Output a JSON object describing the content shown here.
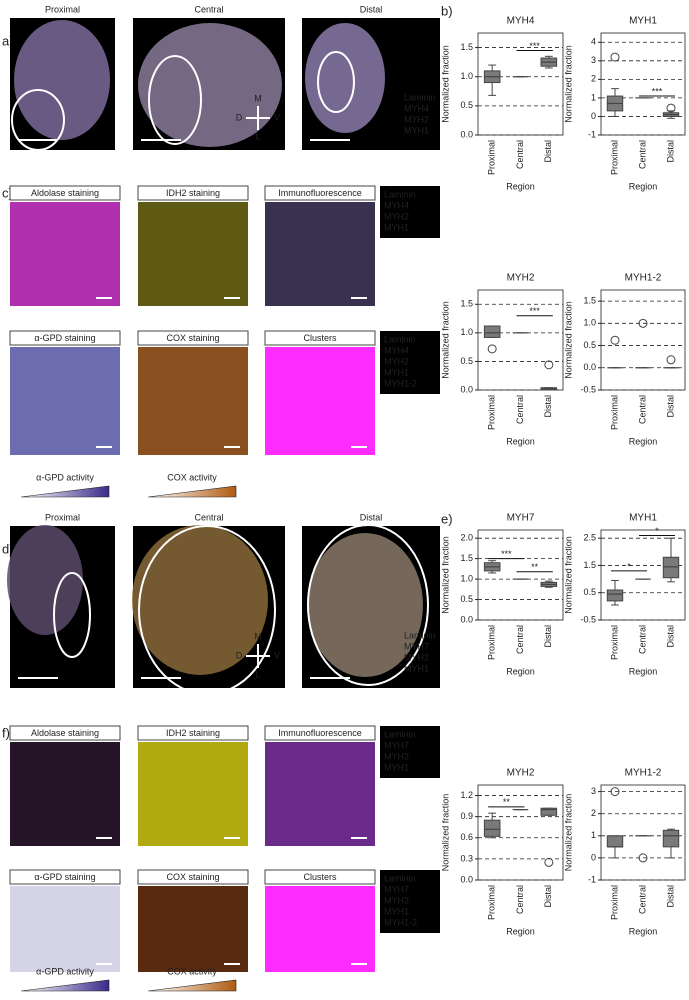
{
  "a": {
    "label": "a)",
    "images": [
      "Proximal",
      "Central",
      "Distal"
    ],
    "legend": [
      "Laminin",
      "MYH4",
      "MYH2",
      "MYH1"
    ],
    "compass": [
      "M",
      "D",
      "V",
      "L"
    ]
  },
  "b": {
    "label": "b)"
  },
  "c": {
    "label": "c)",
    "tiles": [
      "Aldolase staining",
      "IDH2 staining",
      "Immunofluorescence",
      "α-GPD staining",
      "COX staining",
      "Clusters"
    ],
    "legend1": [
      "Laminin",
      "MYH4",
      "MYH2",
      "MYH1"
    ],
    "legend2": [
      "Laminin",
      "MYH4",
      "MYH2",
      "MYH1",
      "MYH1-2"
    ],
    "activities": [
      "α-GPD activity",
      "COX activity"
    ]
  },
  "d": {
    "label": "d)",
    "images": [
      "Proximal",
      "Central",
      "Distal"
    ],
    "legend": [
      "Laminin",
      "MYH7",
      "MYH2",
      "MYH1"
    ],
    "compass": [
      "M",
      "D",
      "V",
      "L"
    ]
  },
  "e": {
    "label": "e)"
  },
  "f": {
    "label": "f)",
    "tiles": [
      "Aldolase staining",
      "IDH2 staining",
      "Immunofluorescence",
      "α-GPD staining",
      "COX staining",
      "Clusters"
    ],
    "legend1": [
      "Laminin",
      "MYH7",
      "MYH2",
      "MYH1"
    ],
    "legend2": [
      "Laminin",
      "MYH7",
      "MYH2",
      "MYH1",
      "MYH1-2"
    ],
    "activities": [
      "α-GPD activity",
      "COX activity"
    ]
  },
  "chart_data": [
    {
      "type": "box",
      "title": "MYH4",
      "ylabel": "Normalized fraction",
      "xlabel": "Region",
      "categories": [
        "Proximal",
        "Central",
        "Distal"
      ],
      "boxes": [
        {
          "whislo": 0.68,
          "q1": 0.9,
          "med": 1.0,
          "q3": 1.1,
          "whishi": 1.2,
          "fliers": []
        },
        {
          "whislo": 1,
          "q1": 1,
          "med": 1,
          "q3": 1,
          "whishi": 1,
          "fliers": []
        },
        {
          "whislo": 1.15,
          "q1": 1.18,
          "med": 1.25,
          "q3": 1.32,
          "whishi": 1.35,
          "fliers": []
        }
      ],
      "ylim": [
        0,
        1.75
      ],
      "yticks": [
        {
          "value": 0,
          "label": "0.0"
        },
        0.5,
        {
          "value": 1,
          "label": "1.0"
        },
        1.5
      ],
      "grid": "dashed",
      "significance": [
        {
          "pair": [
            "Central",
            "Distal"
          ],
          "y": 1.45,
          "label": "***"
        }
      ]
    },
    {
      "type": "box",
      "title": "MYH1",
      "ylabel": "Normalized fraction",
      "xlabel": "Region",
      "categories": [
        "Proximal",
        "Central",
        "Distal"
      ],
      "boxes": [
        {
          "whislo": 0,
          "q1": 0.3,
          "med": 0.7,
          "q3": 1.1,
          "whishi": 1.5,
          "fliers": [
            3.2
          ]
        },
        {
          "whislo": 1,
          "q1": 1,
          "med": 1,
          "q3": 1,
          "whishi": 1,
          "fliers": []
        },
        {
          "whislo": -0.1,
          "q1": 0,
          "med": 0.1,
          "q3": 0.2,
          "whishi": 0.3,
          "fliers": [
            0.45
          ]
        }
      ],
      "ylim": [
        -1,
        4.5
      ],
      "yticks": [
        -1,
        0,
        1,
        2,
        3,
        4
      ],
      "grid": "dashed",
      "significance": [
        {
          "pair": [
            "Central",
            "Distal"
          ],
          "y": 1.1,
          "label": "***"
        }
      ]
    },
    {
      "type": "box",
      "title": "MYH2",
      "ylabel": "Normalized fraction",
      "xlabel": "Region",
      "categories": [
        "Proximal",
        "Central",
        "Distal"
      ],
      "boxes": [
        {
          "whislo": 0.92,
          "q1": 0.92,
          "med": 1.0,
          "q3": 1.12,
          "whishi": 1.12,
          "fliers": [
            0.72
          ]
        },
        {
          "whislo": 1,
          "q1": 1,
          "med": 1,
          "q3": 1,
          "whishi": 1,
          "fliers": []
        },
        {
          "whislo": 0,
          "q1": 0,
          "med": 0.02,
          "q3": 0.04,
          "whishi": 0.04,
          "fliers": [
            0.44
          ]
        }
      ],
      "ylim": [
        0,
        1.75
      ],
      "yticks": [
        {
          "value": 0,
          "label": "0.0"
        },
        0.5,
        {
          "value": 1,
          "label": "1.0"
        },
        1.5
      ],
      "grid": "dashed",
      "significance": [
        {
          "pair": [
            "Central",
            "Distal"
          ],
          "y": 1.3,
          "label": "***"
        }
      ]
    },
    {
      "type": "box",
      "title": "MYH1-2",
      "ylabel": "Normalized fraction",
      "xlabel": "Region",
      "categories": [
        "Proximal",
        "Central",
        "Distal"
      ],
      "boxes": [
        {
          "whislo": 0,
          "q1": 0,
          "med": 0,
          "q3": 0,
          "whishi": 0,
          "fliers": [
            0.62
          ]
        },
        {
          "whislo": 0,
          "q1": 0,
          "med": 0,
          "q3": 0,
          "whishi": 0,
          "fliers": [
            1.0
          ]
        },
        {
          "whislo": 0,
          "q1": 0,
          "med": 0,
          "q3": 0,
          "whishi": 0,
          "fliers": [
            0.18
          ]
        }
      ],
      "ylim": [
        -0.5,
        1.75
      ],
      "yticks": [
        -0.5,
        {
          "value": 0,
          "label": "0.0"
        },
        0.5,
        {
          "value": 1,
          "label": "1.0"
        },
        1.5
      ],
      "grid": "dashed",
      "significance": []
    },
    {
      "type": "box",
      "title": "MYH7",
      "ylabel": "Normalized fraction",
      "xlabel": "Region",
      "categories": [
        "Proximal",
        "Central",
        "Distal"
      ],
      "boxes": [
        {
          "whislo": 1.15,
          "q1": 1.2,
          "med": 1.3,
          "q3": 1.4,
          "whishi": 1.45,
          "fliers": []
        },
        {
          "whislo": 1,
          "q1": 1,
          "med": 1,
          "q3": 1,
          "whishi": 1,
          "fliers": []
        },
        {
          "whislo": 0.8,
          "q1": 0.82,
          "med": 0.87,
          "q3": 0.92,
          "whishi": 0.95,
          "fliers": []
        }
      ],
      "ylim": [
        0,
        2.2
      ],
      "yticks": [
        {
          "value": 0,
          "label": "0.0"
        },
        0.5,
        {
          "value": 1,
          "label": "1.0"
        },
        1.5,
        {
          "value": 2,
          "label": "2.0"
        }
      ],
      "grid": "dashed",
      "significance": [
        {
          "pair": [
            "Proximal",
            "Central"
          ],
          "y": 1.5,
          "label": "***"
        },
        {
          "pair": [
            "Central",
            "Distal"
          ],
          "y": 1.18,
          "label": "**"
        }
      ]
    },
    {
      "type": "box",
      "title": "MYH1",
      "ylabel": "Normalized fraction",
      "xlabel": "Region",
      "categories": [
        "Proximal",
        "Central",
        "Distal"
      ],
      "boxes": [
        {
          "whislo": 0.05,
          "q1": 0.2,
          "med": 0.45,
          "q3": 0.6,
          "whishi": 0.95,
          "fliers": []
        },
        {
          "whislo": 1,
          "q1": 1,
          "med": 1,
          "q3": 1,
          "whishi": 1,
          "fliers": []
        },
        {
          "whislo": 0.9,
          "q1": 1.05,
          "med": 1.45,
          "q3": 1.8,
          "whishi": 2.5,
          "fliers": []
        }
      ],
      "ylim": [
        -0.5,
        2.8
      ],
      "yticks": [
        -0.5,
        0.5,
        1.5,
        2.5
      ],
      "grid": "dashed",
      "significance": [
        {
          "pair": [
            "Proximal",
            "Central"
          ],
          "y": 1.3,
          "label": "*"
        },
        {
          "pair": [
            "Central",
            "Distal"
          ],
          "y": 2.6,
          "label": "*"
        }
      ]
    },
    {
      "type": "box",
      "title": "MYH2",
      "ylabel": "Normalized fraction",
      "xlabel": "Region",
      "categories": [
        "Proximal",
        "Central",
        "Distal"
      ],
      "boxes": [
        {
          "whislo": 0.6,
          "q1": 0.62,
          "med": 0.72,
          "q3": 0.85,
          "whishi": 0.95,
          "fliers": []
        },
        {
          "whislo": 1,
          "q1": 1,
          "med": 1,
          "q3": 1,
          "whishi": 1,
          "fliers": []
        },
        {
          "whislo": 0.92,
          "q1": 0.92,
          "med": 1.0,
          "q3": 1.02,
          "whishi": 1.02,
          "fliers": [
            0.25
          ]
        }
      ],
      "ylim": [
        0,
        1.35
      ],
      "yticks": [
        {
          "value": 0,
          "label": "0.0"
        },
        0.3,
        0.6,
        0.9,
        1.2
      ],
      "grid": "dashed",
      "significance": [
        {
          "pair": [
            "Proximal",
            "Central"
          ],
          "y": 1.04,
          "label": "**"
        }
      ]
    },
    {
      "type": "box",
      "title": "MYH1-2",
      "ylabel": "Normalized fraction",
      "xlabel": "Region",
      "categories": [
        "Proximal",
        "Central",
        "Distal"
      ],
      "boxes": [
        {
          "whislo": 0,
          "q1": 0.5,
          "med": 0.5,
          "q3": 1.0,
          "whishi": 1.0,
          "fliers": [
            3.0
          ]
        },
        {
          "whislo": 1,
          "q1": 1,
          "med": 1,
          "q3": 1,
          "whishi": 1,
          "fliers": [
            0
          ]
        },
        {
          "whislo": 0,
          "q1": 0.5,
          "med": 1.0,
          "q3": 1.25,
          "whishi": 1.3,
          "fliers": []
        }
      ],
      "ylim": [
        -1,
        3.3
      ],
      "yticks": [
        -1,
        0,
        1,
        2,
        3
      ],
      "grid": "dashed",
      "significance": []
    }
  ]
}
